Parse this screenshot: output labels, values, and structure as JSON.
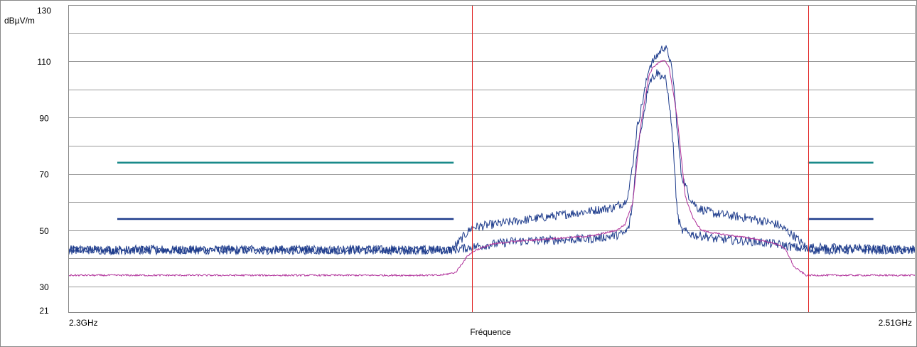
{
  "chart_data": {
    "type": "line",
    "title": "",
    "ylabel": "dBµV/m",
    "xlabel": "Fréquence",
    "x_unit": "GHz",
    "xlim": [
      2.3,
      2.51
    ],
    "ylim": [
      21,
      130
    ],
    "x_tick_labels": [
      {
        "value": 2.3,
        "label": "2.3GHz"
      },
      {
        "value": 2.51,
        "label": "2.51GHz"
      }
    ],
    "y_ticks": [
      130,
      110,
      90,
      70,
      50,
      30,
      21
    ],
    "y_gridlines": [
      120,
      110,
      100,
      90,
      80,
      70,
      60,
      50,
      40,
      30
    ],
    "grid": true,
    "markers": [
      {
        "x": 2.4,
        "color": "#e02020"
      },
      {
        "x": 2.4835,
        "color": "#e02020"
      }
    ],
    "limit_lines": [
      {
        "x": [
          2.312,
          2.3955
        ],
        "y": 74,
        "color": "#1a8a8a"
      },
      {
        "x": [
          2.4835,
          2.4997
        ],
        "y": 74,
        "color": "#1a8a8a"
      },
      {
        "x": [
          2.312,
          2.3955
        ],
        "y": 54,
        "color": "#1e3c8c"
      },
      {
        "x": [
          2.4835,
          2.4997
        ],
        "y": 54,
        "color": "#1e3c8c"
      }
    ],
    "series": [
      {
        "color": "#1e3c8c",
        "noise": 1.6,
        "x": [
          2.3,
          2.395,
          2.4,
          2.41,
          2.43,
          2.435,
          2.438,
          2.439,
          2.44,
          2.441,
          2.443,
          2.444,
          2.446,
          2.447,
          2.4475,
          2.448,
          2.449,
          2.45,
          2.451,
          2.452,
          2.454,
          2.456,
          2.458,
          2.46,
          2.47,
          2.476,
          2.48,
          2.483,
          2.51
        ],
        "y": [
          43,
          43,
          51,
          53,
          57,
          58,
          60,
          64,
          74,
          86,
          100,
          108,
          112,
          114,
          115,
          115,
          112,
          104,
          86,
          70,
          62,
          58,
          57,
          56,
          54,
          52,
          48,
          44,
          43
        ]
      },
      {
        "color": "#1e3c8c",
        "noise": 1.6,
        "x": [
          2.3,
          2.395,
          2.4,
          2.41,
          2.43,
          2.435,
          2.438,
          2.439,
          2.44,
          2.441,
          2.443,
          2.444,
          2.446,
          2.447,
          2.448,
          2.449,
          2.45,
          2.451,
          2.452,
          2.454,
          2.456,
          2.458,
          2.46,
          2.47,
          2.476,
          2.48,
          2.483,
          2.51
        ],
        "y": [
          43,
          43,
          44,
          46,
          47,
          48,
          49,
          51,
          60,
          78,
          94,
          103,
          106,
          105,
          104,
          96,
          80,
          56,
          50,
          49,
          48,
          48,
          47,
          46,
          45,
          44,
          43,
          43
        ]
      },
      {
        "color": "#b0309a",
        "noise": 0.3,
        "x": [
          2.3,
          2.392,
          2.396,
          2.397,
          2.399,
          2.401,
          2.405,
          2.41,
          2.43,
          2.436,
          2.438,
          2.44,
          2.442,
          2.444,
          2.445,
          2.447,
          2.448,
          2.449,
          2.451,
          2.453,
          2.455,
          2.457,
          2.46,
          2.47,
          2.476,
          2.478,
          2.48,
          2.483,
          2.51
        ],
        "y": [
          34,
          34,
          35,
          37,
          41,
          43,
          45,
          46,
          48,
          50,
          52,
          60,
          88,
          105,
          108,
          110,
          110,
          108,
          90,
          62,
          54,
          50,
          49,
          47,
          45,
          43,
          37,
          34,
          34
        ]
      }
    ]
  }
}
